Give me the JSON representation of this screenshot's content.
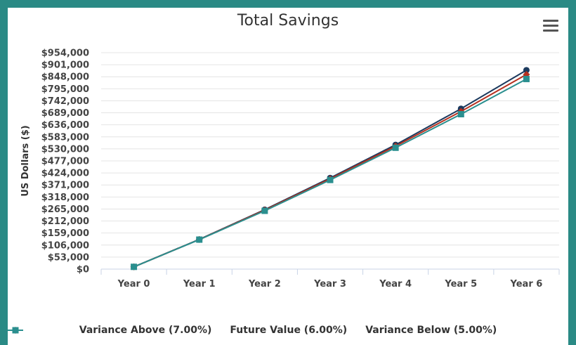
{
  "chart_data": {
    "type": "line",
    "title": "Total Savings",
    "ylabel": "US Dollars ($)",
    "categories": [
      "Year 0",
      "Year 1",
      "Year 2",
      "Year 3",
      "Year 4",
      "Year 5",
      "Year 6"
    ],
    "y_ticks": [
      "$0",
      "$53,000",
      "$106,000",
      "$159,000",
      "$212,000",
      "$265,000",
      "$318,000",
      "$371,000",
      "$424,000",
      "$477,000",
      "$530,000",
      "$583,000",
      "$636,000",
      "$689,000",
      "$742,000",
      "$795,000",
      "$848,000",
      "$901,000",
      "$954,000"
    ],
    "ylim": [
      0,
      954000
    ],
    "tick_step": 53000,
    "grid": true,
    "legend_position": "bottom",
    "series": [
      {
        "name": "Variance Above (7.00%)",
        "color": "#1c3a5e",
        "marker": "circle",
        "values": [
          10000,
          131000,
          262000,
          402000,
          548000,
          707000,
          877000
        ]
      },
      {
        "name": "Future Value (6.00%)",
        "color": "#b5301f",
        "marker": "diamond",
        "values": [
          10000,
          130500,
          260000,
          398000,
          542000,
          695000,
          858000
        ]
      },
      {
        "name": "Variance Below (5.00%)",
        "color": "#2a8f8f",
        "marker": "square",
        "values": [
          10000,
          130000,
          257000,
          393000,
          535000,
          683000,
          838000
        ]
      }
    ]
  }
}
